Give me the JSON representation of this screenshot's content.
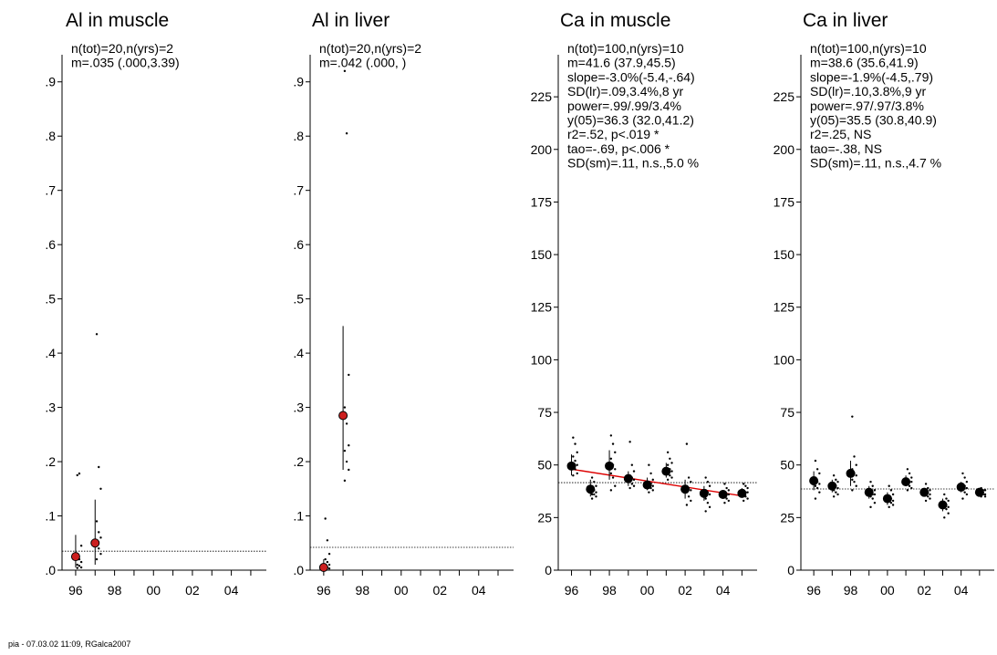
{
  "footer": "pia - 07.03.02  11:09,  RGalca2007",
  "colors": {
    "mean_marker_early": "#cc1f1f",
    "trend_line": "#dd0000",
    "points": "#000000"
  },
  "x_tick_labels": [
    "96",
    "98",
    "00",
    "02",
    "04"
  ],
  "chart_data": [
    {
      "type": "scatter",
      "title": "Al in muscle",
      "stats": [
        "n(tot)=20,n(yrs)=2",
        "m=.035 (.000,3.39)"
      ],
      "xlim": [
        1995.3,
        2005.8
      ],
      "ylim": [
        0,
        0.95
      ],
      "y_ticks": [
        0,
        0.1,
        0.2,
        0.3,
        0.4,
        0.5,
        0.6,
        0.7,
        0.8,
        0.9
      ],
      "y_tick_labels": [
        ".0",
        ".1",
        ".2",
        ".3",
        ".4",
        ".5",
        ".6",
        ".7",
        ".8",
        ".9"
      ],
      "reference_line": 0.035,
      "means": [
        {
          "x": 1996,
          "y": 0.025,
          "low": 0.005,
          "high": 0.065
        },
        {
          "x": 1997,
          "y": 0.05,
          "low": 0.01,
          "high": 0.13
        }
      ],
      "points": [
        {
          "x": 1996,
          "y": [
            0.175,
            0.178,
            0.045,
            0.03,
            0.02,
            0.015,
            0.01,
            0.008,
            0.005,
            0.004
          ]
        },
        {
          "x": 1997,
          "y": [
            0.435,
            0.19,
            0.15,
            0.09,
            0.07,
            0.06,
            0.05,
            0.04,
            0.03,
            0.02
          ]
        }
      ],
      "marker_color": "#cc1f1f"
    },
    {
      "type": "scatter",
      "title": "Al in liver",
      "stats": [
        "n(tot)=20,n(yrs)=2",
        "m=.042 (.000,    )"
      ],
      "xlim": [
        1995.3,
        2005.8
      ],
      "ylim": [
        0,
        0.95
      ],
      "y_ticks": [
        0,
        0.1,
        0.2,
        0.3,
        0.4,
        0.5,
        0.6,
        0.7,
        0.8,
        0.9
      ],
      "y_tick_labels": [
        ".0",
        ".1",
        ".2",
        ".3",
        ".4",
        ".5",
        ".6",
        ".7",
        ".8",
        ".9"
      ],
      "reference_line": 0.042,
      "means": [
        {
          "x": 1996,
          "y": 0.005,
          "low": 0.0,
          "high": 0.02
        },
        {
          "x": 1997,
          "y": 0.285,
          "low": 0.185,
          "high": 0.45
        }
      ],
      "points": [
        {
          "x": 1996,
          "y": [
            0.095,
            0.055,
            0.03,
            0.02,
            0.015,
            0.01,
            0.008,
            0.005,
            0.003,
            0.002
          ]
        },
        {
          "x": 1997,
          "y": [
            0.92,
            0.805,
            0.36,
            0.3,
            0.27,
            0.23,
            0.22,
            0.2,
            0.185,
            0.165
          ]
        }
      ],
      "marker_color": "#cc1f1f"
    },
    {
      "type": "scatter",
      "title": "Ca in muscle",
      "stats": [
        "n(tot)=100,n(yrs)=10",
        "m=41.6 (37.9,45.5)",
        "slope=-3.0%(-5.4,-.64)",
        "SD(lr)=.09,3.4%,8 yr",
        "power=.99/.99/3.4%",
        "y(05)=36.3 (32.0,41.2)",
        "r2=.52, p<.019 *",
        "tao=-.69, p<.006 *",
        "SD(sm)=.11, n.s.,5.0 %"
      ],
      "xlim": [
        1995.3,
        2005.8
      ],
      "ylim": [
        0,
        245
      ],
      "y_ticks": [
        0,
        25,
        50,
        75,
        100,
        125,
        150,
        175,
        200,
        225
      ],
      "y_tick_labels": [
        "0",
        "25",
        "50",
        "75",
        "100",
        "125",
        "150",
        "175",
        "200",
        "225"
      ],
      "reference_line": 41.6,
      "trend": {
        "x": [
          1996,
          2005
        ],
        "y": [
          48.0,
          35.3
        ]
      },
      "means": [
        {
          "x": 1996,
          "y": 49.5,
          "low": 45,
          "high": 55
        },
        {
          "x": 1997,
          "y": 38.5,
          "low": 35,
          "high": 43
        },
        {
          "x": 1998,
          "y": 49.5,
          "low": 43,
          "high": 57
        },
        {
          "x": 1999,
          "y": 43.5,
          "low": 40,
          "high": 47
        },
        {
          "x": 2000,
          "y": 40.5,
          "low": 38,
          "high": 44
        },
        {
          "x": 2001,
          "y": 47,
          "low": 44,
          "high": 51
        },
        {
          "x": 2002,
          "y": 38.5,
          "low": 34,
          "high": 43
        },
        {
          "x": 2003,
          "y": 36.5,
          "low": 33,
          "high": 40
        },
        {
          "x": 2004,
          "y": 36,
          "low": 34,
          "high": 38
        },
        {
          "x": 2005,
          "y": 36.5,
          "low": 35,
          "high": 39
        }
      ],
      "points": [
        {
          "x": 1996,
          "y": [
            63,
            60,
            56,
            54,
            52,
            50,
            49,
            48,
            46,
            45
          ]
        },
        {
          "x": 1997,
          "y": [
            44,
            42,
            40,
            39,
            38,
            37,
            36,
            36,
            35,
            34
          ]
        },
        {
          "x": 1998,
          "y": [
            64,
            60,
            56,
            53,
            50,
            48,
            46,
            44,
            40,
            38
          ]
        },
        {
          "x": 1999,
          "y": [
            61,
            50,
            47,
            45,
            44,
            43,
            42,
            41,
            40,
            39
          ]
        },
        {
          "x": 2000,
          "y": [
            50,
            46,
            43,
            42,
            41,
            40,
            40,
            39,
            38,
            37
          ]
        },
        {
          "x": 2001,
          "y": [
            56,
            53,
            51,
            50,
            48,
            47,
            46,
            45,
            44,
            43
          ]
        },
        {
          "x": 2002,
          "y": [
            60,
            44,
            42,
            40,
            39,
            38,
            37,
            35,
            33,
            31
          ]
        },
        {
          "x": 2003,
          "y": [
            44,
            42,
            40,
            38,
            37,
            36,
            34,
            32,
            30,
            28
          ]
        },
        {
          "x": 2004,
          "y": [
            41,
            39,
            38,
            37,
            36,
            36,
            35,
            34,
            33,
            32
          ]
        },
        {
          "x": 2005,
          "y": [
            41,
            40,
            39,
            38,
            37,
            37,
            36,
            35,
            34,
            33
          ]
        }
      ],
      "marker_color": "#000000"
    },
    {
      "type": "scatter",
      "title": "Ca in liver",
      "stats": [
        "n(tot)=100,n(yrs)=10",
        "m=38.6 (35.6,41.9)",
        "slope=-1.9%(-4.5,.79)",
        "SD(lr)=.10,3.8%,9 yr",
        "power=.97/.97/3.8%",
        "y(05)=35.5 (30.8,40.9)",
        "r2=.25, NS",
        "tao=-.38, NS",
        "SD(sm)=.11, n.s.,4.7 %"
      ],
      "xlim": [
        1995.3,
        2005.8
      ],
      "ylim": [
        0,
        245
      ],
      "y_ticks": [
        0,
        25,
        50,
        75,
        100,
        125,
        150,
        175,
        200,
        225
      ],
      "y_tick_labels": [
        "0",
        "25",
        "50",
        "75",
        "100",
        "125",
        "150",
        "175",
        "200",
        "225"
      ],
      "reference_line": 38.6,
      "means": [
        {
          "x": 1996,
          "y": 42.5,
          "low": 38,
          "high": 47
        },
        {
          "x": 1997,
          "y": 40,
          "low": 37,
          "high": 43
        },
        {
          "x": 1998,
          "y": 46,
          "low": 40,
          "high": 52
        },
        {
          "x": 1999,
          "y": 37,
          "low": 34,
          "high": 40
        },
        {
          "x": 2000,
          "y": 34,
          "low": 31,
          "high": 37
        },
        {
          "x": 2001,
          "y": 42,
          "low": 40,
          "high": 45
        },
        {
          "x": 2002,
          "y": 37,
          "low": 35,
          "high": 39
        },
        {
          "x": 2003,
          "y": 31,
          "low": 28,
          "high": 34
        },
        {
          "x": 2004,
          "y": 39.5,
          "low": 37,
          "high": 42
        },
        {
          "x": 2005,
          "y": 37,
          "low": 36,
          "high": 38
        }
      ],
      "points": [
        {
          "x": 1996,
          "y": [
            52,
            48,
            46,
            44,
            42,
            41,
            40,
            39,
            37,
            34
          ]
        },
        {
          "x": 1997,
          "y": [
            45,
            43,
            42,
            41,
            40,
            39,
            38,
            37,
            36,
            35
          ]
        },
        {
          "x": 1998,
          "y": [
            73,
            54,
            50,
            48,
            46,
            45,
            43,
            42,
            40,
            38
          ]
        },
        {
          "x": 1999,
          "y": [
            42,
            40,
            38,
            37,
            36,
            36,
            35,
            34,
            32,
            30
          ]
        },
        {
          "x": 2000,
          "y": [
            40,
            38,
            36,
            35,
            34,
            33,
            33,
            32,
            31,
            30
          ]
        },
        {
          "x": 2001,
          "y": [
            48,
            46,
            44,
            43,
            42,
            42,
            41,
            40,
            39,
            38
          ]
        },
        {
          "x": 2002,
          "y": [
            41,
            39,
            38,
            37,
            37,
            36,
            36,
            35,
            34,
            33
          ]
        },
        {
          "x": 2003,
          "y": [
            36,
            34,
            33,
            32,
            31,
            30,
            30,
            29,
            27,
            25
          ]
        },
        {
          "x": 2004,
          "y": [
            46,
            44,
            42,
            41,
            40,
            39,
            38,
            37,
            36,
            34
          ]
        },
        {
          "x": 2005,
          "y": [
            39,
            38,
            38,
            37,
            37,
            36,
            36,
            36,
            35,
            35
          ]
        }
      ],
      "marker_color": "#000000"
    }
  ]
}
